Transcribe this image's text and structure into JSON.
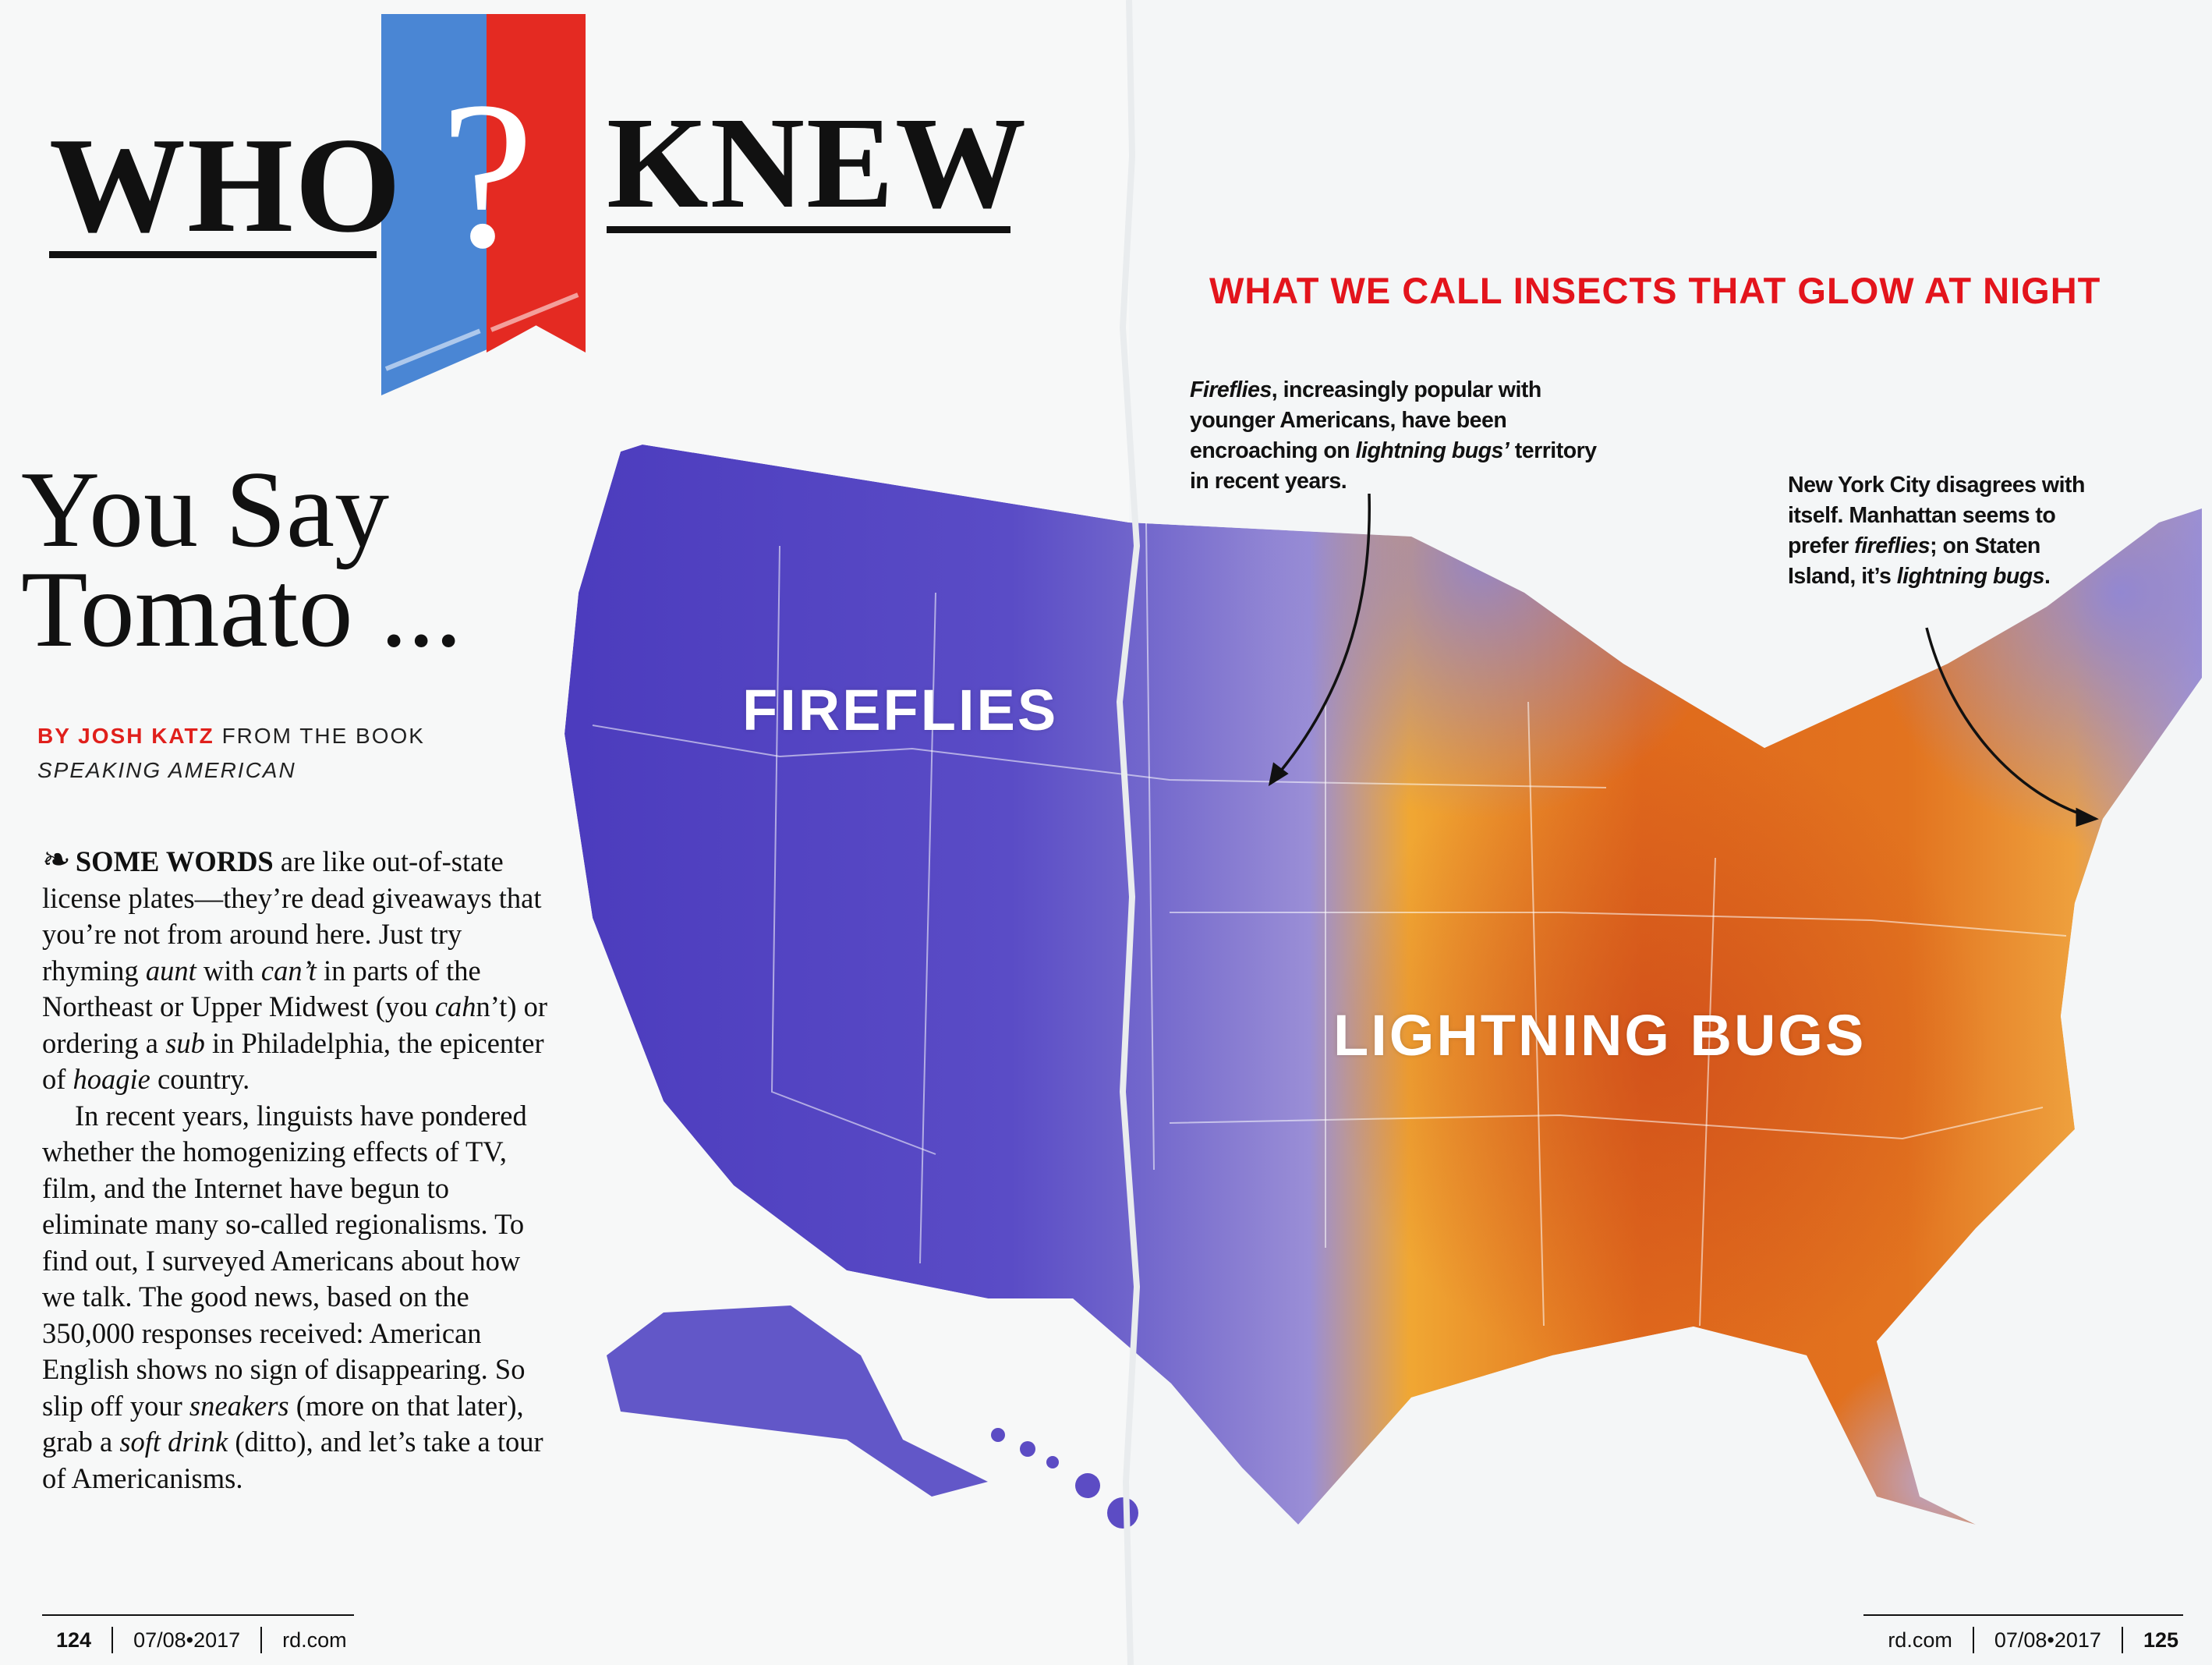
{
  "logo": {
    "word_left": "WHO",
    "symbol": "?",
    "word_right": "KNEW",
    "colors": {
      "blue": "#4a86d4",
      "red": "#e42a22"
    }
  },
  "article": {
    "headline_line1": "You Say",
    "headline_line2": "Tomato ...",
    "byline_author": "BY JOSH KATZ",
    "byline_source": "FROM THE BOOK",
    "byline_book": "SPEAKING AMERICAN",
    "paragraphs": [
      [
        {
          "t": "SOME WORDS",
          "s": "lead"
        },
        {
          "t": " are like out-of-state license plates—they’re dead giveaways that you’re not from around here. Just try rhyming "
        },
        {
          "t": "aunt",
          "s": "i"
        },
        {
          "t": " with "
        },
        {
          "t": "can’t",
          "s": "i"
        },
        {
          "t": " in parts of the Northeast or Upper Midwest (you "
        },
        {
          "t": "cah",
          "s": "i"
        },
        {
          "t": "n’t) or ordering a "
        },
        {
          "t": "sub",
          "s": "i"
        },
        {
          "t": " in Philadelphia, the epicenter of "
        },
        {
          "t": "hoagie",
          "s": "i"
        },
        {
          "t": " country."
        }
      ],
      [
        {
          "t": "In recent years, linguists have pondered whether the homogenizing effects of TV, film, and the Internet have begun to eliminate many so-called regionalisms. To find out, I surveyed Americans about how we talk. The good news, based on the 350,000 responses received: American English shows no sign of disappearing. So slip off your "
        },
        {
          "t": "sneakers",
          "s": "i"
        },
        {
          "t": " (more on that later), grab a "
        },
        {
          "t": "soft drink",
          "s": "i"
        },
        {
          "t": " (ditto), and let’s take a tour of Americanisms."
        }
      ]
    ]
  },
  "map": {
    "title": "WHAT WE CALL INSECTS THAT GLOW AT NIGHT",
    "label_west": "FIREFLIES",
    "label_east": "LIGHTNING BUGS",
    "colors": {
      "fireflies": "#5747c4",
      "lightning_bugs": "#e0661c",
      "title": "#e3141c"
    },
    "notes": [
      [
        {
          "t": "Fireflies",
          "s": "i"
        },
        {
          "t": ", increasingly popular with younger Americans, have been encroaching on "
        },
        {
          "t": "lightning bugs’",
          "s": "i"
        },
        {
          "t": " territory in recent years."
        }
      ],
      [
        {
          "t": "New York City disagrees with itself. Manhattan seems to prefer "
        },
        {
          "t": "fireflies",
          "s": "i"
        },
        {
          "t": "; on Staten Island, it’s "
        },
        {
          "t": "lightning bugs",
          "s": "i"
        },
        {
          "t": "."
        }
      ]
    ]
  },
  "footer_left": {
    "page": "124",
    "date": "07/08•2017",
    "site": "rd.com"
  },
  "footer_right": {
    "site": "rd.com",
    "date": "07/08•2017",
    "page": "125"
  }
}
